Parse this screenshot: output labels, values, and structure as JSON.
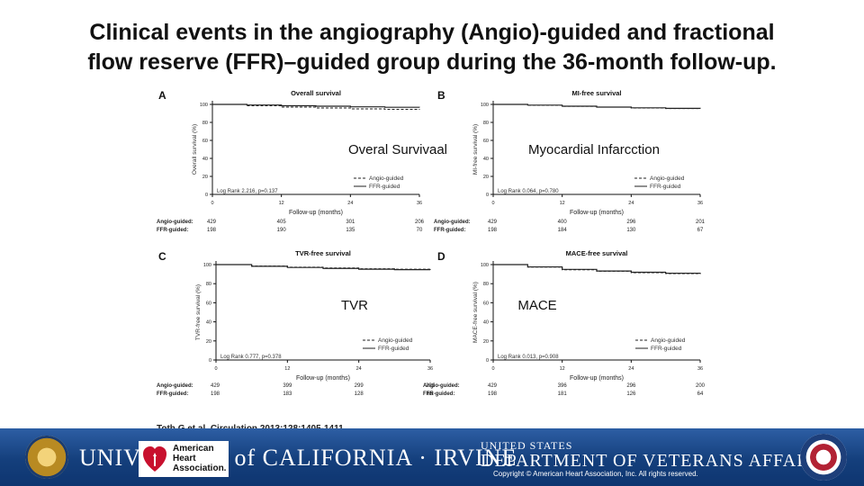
{
  "slide": {
    "title_line1": "Clinical events in the angiography (Angio)-guided and fractional",
    "title_line2": "flow reserve (FFR)–guided group during the 36-month follow-up.",
    "citation": "Toth G et al. Circulation 2013;128:1405-1411"
  },
  "footer": {
    "uci_text": "UNIVERSITY of CALIFORNIA · IRVINE",
    "aha_line1": "American",
    "aha_line2": "Heart",
    "aha_line3": "Association.",
    "va_line1": "UNITED STATES",
    "va_line2": "DEPARTMENT OF VETERANS AFFAIRS",
    "copyright": "Copyright © American Heart Association, Inc. All rights reserved.",
    "colors": {
      "band": "#143f7c",
      "aha_red": "#c8102e"
    }
  },
  "legend_labels": [
    "Angio-guided",
    "FFR-guided"
  ],
  "risk_row_labels": [
    "Angio-guided:",
    "FFR-guided:"
  ],
  "risk_times": [
    0,
    12,
    24,
    36
  ],
  "chart_data": [
    {
      "type": "line",
      "panel_letter": "A",
      "title": "Overall survival",
      "overlay_label": "Overal Survivaal",
      "ylabel": "Overall survival (%)",
      "xlabel": "Follow-up (months)",
      "xlim": [
        0,
        36
      ],
      "ylim": [
        0,
        100
      ],
      "xticks": [
        0,
        12,
        24,
        36
      ],
      "yticks": [
        0,
        20,
        40,
        60,
        80,
        100
      ],
      "stat": "Log Rank 2.216, p=0.137",
      "series": [
        {
          "name": "Angio-guided",
          "x": [
            0,
            6,
            12,
            18,
            24,
            30,
            36
          ],
          "y": [
            100,
            98.5,
            97.0,
            96.0,
            95.0,
            94.5,
            94.0
          ]
        },
        {
          "name": "FFR-guided",
          "x": [
            0,
            6,
            12,
            18,
            24,
            30,
            36
          ],
          "y": [
            100,
            99.3,
            98.5,
            98.0,
            97.3,
            96.8,
            96.5
          ]
        }
      ],
      "risk": {
        "Angio-guided": [
          429,
          405,
          301,
          206
        ],
        "FFR-guided": [
          198,
          190,
          135,
          70
        ]
      }
    },
    {
      "type": "line",
      "panel_letter": "B",
      "title": "MI-free survival",
      "overlay_label": "Myocardial Infarcction",
      "ylabel": "MI-free survival (%)",
      "xlabel": "Follow-up (months)",
      "xlim": [
        0,
        36
      ],
      "ylim": [
        0,
        100
      ],
      "xticks": [
        0,
        12,
        24,
        36
      ],
      "yticks": [
        0,
        20,
        40,
        60,
        80,
        100
      ],
      "stat": "Log Rank 0.064, p=0.780",
      "series": [
        {
          "name": "Angio-guided",
          "x": [
            0,
            6,
            12,
            18,
            24,
            30,
            36
          ],
          "y": [
            100,
            99.0,
            97.8,
            97.0,
            96.0,
            95.3,
            95.0
          ]
        },
        {
          "name": "FFR-guided",
          "x": [
            0,
            6,
            12,
            18,
            24,
            30,
            36
          ],
          "y": [
            100,
            99.2,
            98.0,
            97.0,
            96.2,
            95.6,
            95.3
          ]
        }
      ],
      "risk": {
        "Angio-guided": [
          429,
          400,
          296,
          201
        ],
        "FFR-guided": [
          198,
          184,
          130,
          67
        ]
      }
    },
    {
      "type": "line",
      "panel_letter": "C",
      "title": "TVR-free survival",
      "overlay_label": "TVR",
      "ylabel": "TVR-free survival (%)",
      "xlabel": "Follow-up (months)",
      "xlim": [
        0,
        36
      ],
      "ylim": [
        0,
        100
      ],
      "xticks": [
        0,
        12,
        24,
        36
      ],
      "yticks": [
        0,
        20,
        40,
        60,
        80,
        100
      ],
      "stat": "Log Rank 0.777, p=0.378",
      "series": [
        {
          "name": "Angio-guided",
          "x": [
            0,
            6,
            12,
            18,
            24,
            30,
            36
          ],
          "y": [
            100,
            98.5,
            97.3,
            96.5,
            95.7,
            95.2,
            95.0
          ]
        },
        {
          "name": "FFR-guided",
          "x": [
            0,
            6,
            12,
            18,
            24,
            30,
            36
          ],
          "y": [
            100,
            98.2,
            97.0,
            96.0,
            95.2,
            94.7,
            94.5
          ]
        }
      ],
      "risk": {
        "Angio-guided": [
          429,
          399,
          299,
          201
        ],
        "FFR-guided": [
          198,
          183,
          128,
          65
        ]
      }
    },
    {
      "type": "line",
      "panel_letter": "D",
      "title": "MACE-free survival",
      "overlay_label": "MACE",
      "ylabel": "MACE-free survival (%)",
      "xlabel": "Follow-up (months)",
      "xlim": [
        0,
        36
      ],
      "ylim": [
        0,
        100
      ],
      "xticks": [
        0,
        12,
        24,
        36
      ],
      "yticks": [
        0,
        20,
        40,
        60,
        80,
        100
      ],
      "stat": "Log Rank 0.013, p=0.908",
      "series": [
        {
          "name": "Angio-guided",
          "x": [
            0,
            6,
            12,
            18,
            24,
            30,
            36
          ],
          "y": [
            100,
            97.3,
            94.5,
            93.0,
            91.5,
            90.5,
            90.0
          ]
        },
        {
          "name": "FFR-guided",
          "x": [
            0,
            6,
            12,
            18,
            24,
            30,
            36
          ],
          "y": [
            100,
            97.6,
            95.0,
            93.3,
            92.0,
            91.0,
            90.5
          ]
        }
      ],
      "risk": {
        "Angio-guided": [
          429,
          396,
          296,
          200
        ],
        "FFR-guided": [
          198,
          181,
          126,
          64
        ]
      }
    }
  ]
}
